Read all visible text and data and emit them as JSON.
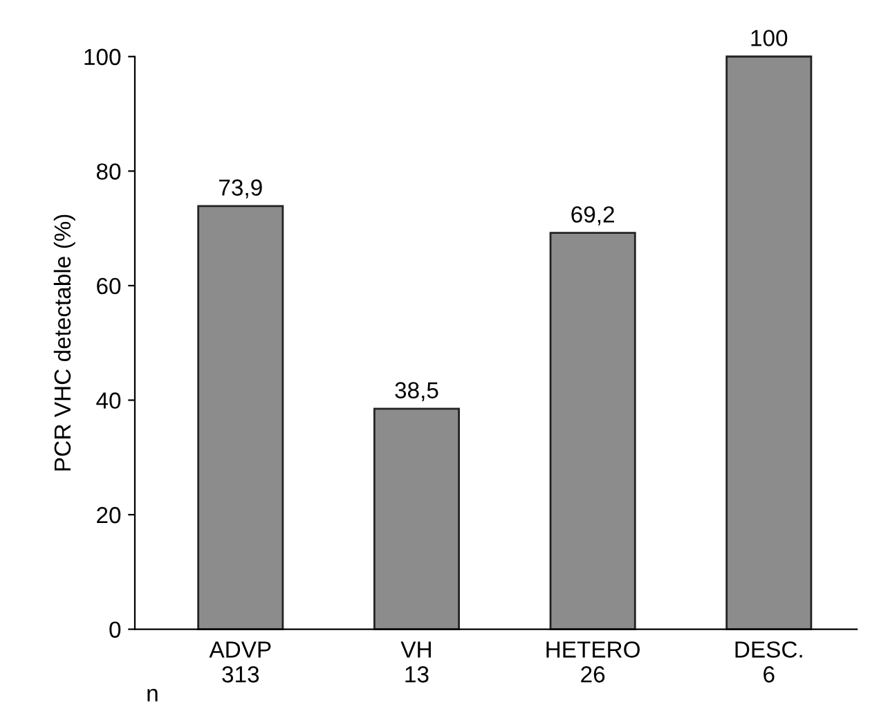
{
  "chart_data": {
    "type": "bar",
    "ylabel": "PCR VHC detectable (%)",
    "categories": [
      "ADVP\n313",
      "VH\n13",
      "HETERO\n26",
      "DESC.\n6"
    ],
    "values": [
      73.9,
      38.5,
      69.2,
      100
    ],
    "value_labels": [
      "73,9",
      "38,5",
      "69,2",
      "100"
    ],
    "color": "#8c8c8c",
    "ylim": [
      0,
      100
    ],
    "yticks": [
      0,
      20,
      40,
      60,
      80,
      100
    ],
    "grid": false,
    "annotations": [
      "n"
    ]
  }
}
